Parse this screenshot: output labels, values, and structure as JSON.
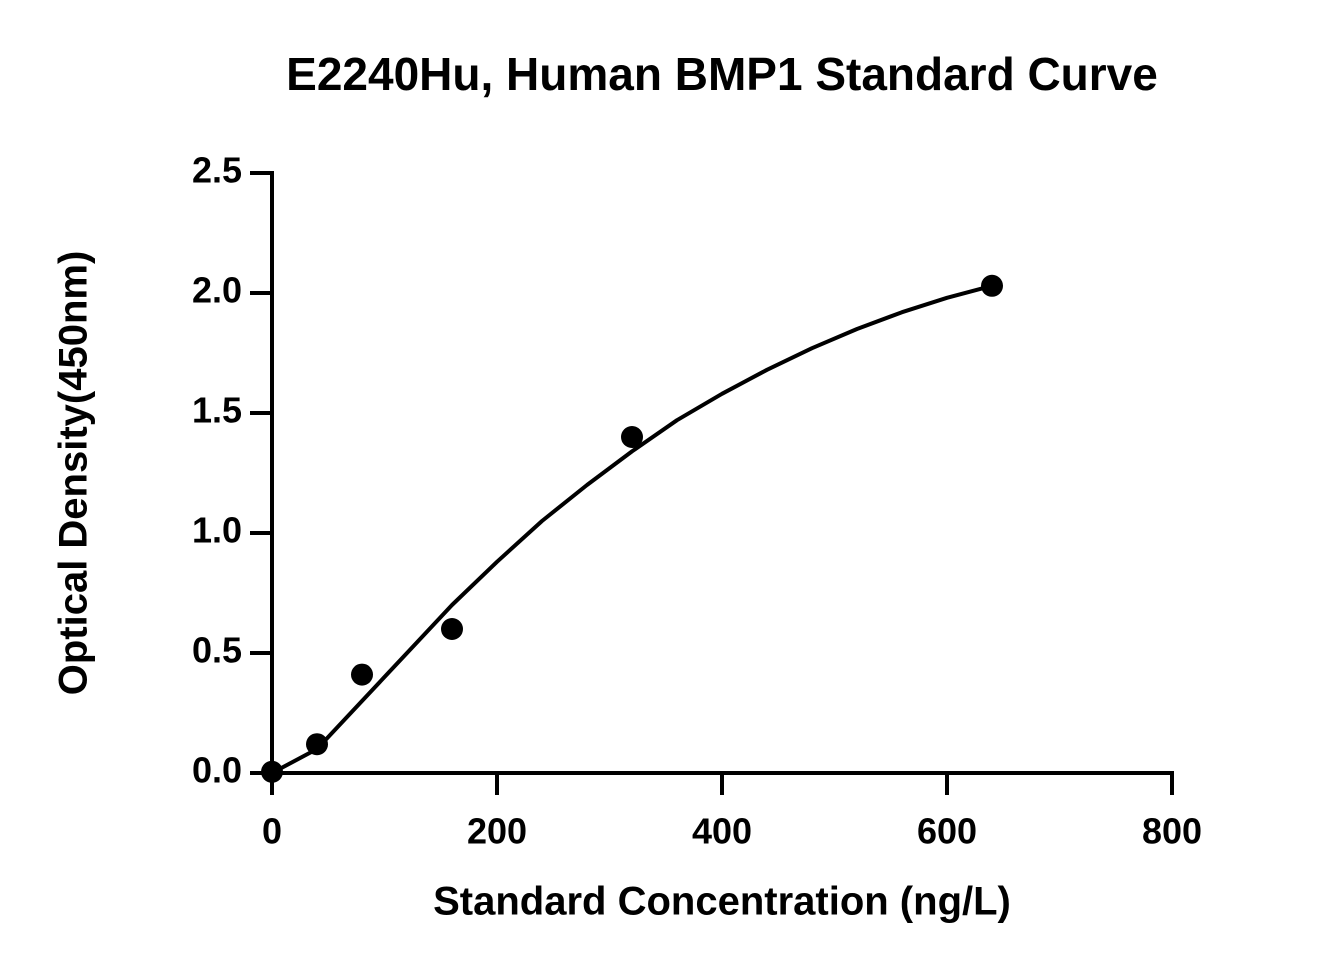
{
  "chart_data": {
    "type": "scatter",
    "title": "E2240Hu, Human BMP1 Standard Curve",
    "x_label": "Standard Concentration (ng/L)",
    "y_label": "Optical Density(450nm)",
    "xlim": [
      0,
      800
    ],
    "xticks": [
      0,
      200,
      400,
      600,
      800
    ],
    "ylim": [
      0,
      2.5
    ],
    "yticks": [
      {
        "value": 0,
        "label": "0.0"
      },
      0.5,
      {
        "value": 1,
        "label": "1.0"
      },
      1.5,
      {
        "value": 2,
        "label": "2.0"
      },
      2.5
    ],
    "series": [
      {
        "mode": "markers",
        "color": "#000000",
        "x": [
          0,
          40,
          80,
          160,
          320,
          640
        ],
        "values": [
          0.005,
          0.12,
          0.41,
          0.6,
          1.4,
          2.03
        ]
      },
      {
        "mode": "line",
        "color": "#000000",
        "x": [
          0,
          40,
          80,
          120,
          160,
          200,
          240,
          280,
          320,
          360,
          400,
          440,
          480,
          520,
          560,
          600,
          640
        ],
        "values": [
          0,
          0.1,
          0.3,
          0.5,
          0.7,
          0.88,
          1.05,
          1.2,
          1.34,
          1.47,
          1.58,
          1.68,
          1.77,
          1.85,
          1.92,
          1.98,
          2.03
        ]
      }
    ]
  }
}
